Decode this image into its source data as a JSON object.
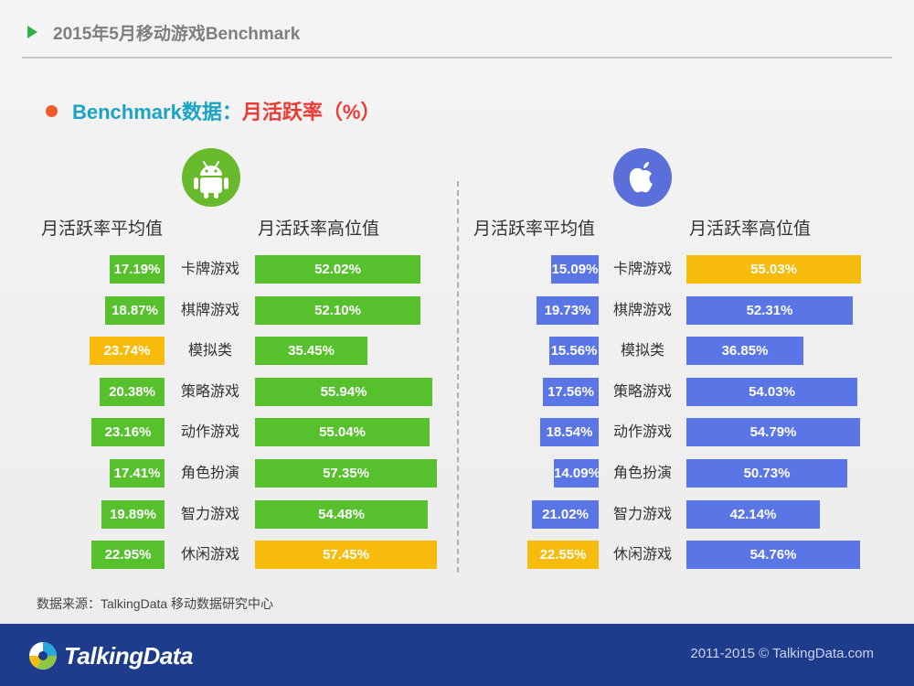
{
  "header": {
    "title": "2015年5月移动游戏Benchmark"
  },
  "subtitle": {
    "prefix": "Benchmark数据：",
    "highlight": "月活跃率（%）"
  },
  "colors": {
    "android_green": "#56c02d",
    "ios_blue": "#5a75e6",
    "highlight_yellow": "#f7bb0b",
    "android_icon": "#69b92d",
    "apple_icon": "#5a6fd9"
  },
  "icons": {
    "android": "android-robot-icon",
    "ios": "apple-icon",
    "logo": "talkingdata-logo-icon"
  },
  "chart_data": [
    {
      "type": "bar",
      "platform": "Android",
      "categories": [
        "卡牌游戏",
        "棋牌游戏",
        "模拟类",
        "策略游戏",
        "动作游戏",
        "角色扮演",
        "智力游戏",
        "休闲游戏"
      ],
      "series": [
        {
          "name": "月活跃率平均值",
          "values": [
            17.19,
            18.87,
            23.74,
            20.38,
            23.16,
            17.41,
            19.89,
            22.95
          ],
          "labels": [
            "17.19%",
            "18.87%",
            "23.74%",
            "20.38%",
            "23.16%",
            "17.41%",
            "19.89%",
            "22.95%"
          ],
          "highlight_index": 2
        },
        {
          "name": "月活跃率高位值",
          "values": [
            52.02,
            52.1,
            35.45,
            55.94,
            55.04,
            57.35,
            54.48,
            57.45
          ],
          "labels": [
            "52.02%",
            "52.10%",
            "35.45%",
            "55.94%",
            "55.04%",
            "57.35%",
            "54.48%",
            "57.45%"
          ],
          "highlight_index": 7
        }
      ]
    },
    {
      "type": "bar",
      "platform": "iOS",
      "categories": [
        "卡牌游戏",
        "棋牌游戏",
        "模拟类",
        "策略游戏",
        "动作游戏",
        "角色扮演",
        "智力游戏",
        "休闲游戏"
      ],
      "series": [
        {
          "name": "月活跃率平均值",
          "values": [
            15.09,
            19.73,
            15.56,
            17.56,
            18.54,
            14.09,
            21.02,
            22.55
          ],
          "labels": [
            "15.09%",
            "19.73%",
            "15.56%",
            "17.56%",
            "18.54%",
            "14.09%",
            "21.02%",
            "22.55%"
          ],
          "highlight_index": 7
        },
        {
          "name": "月活跃率高位值",
          "values": [
            55.03,
            52.31,
            36.85,
            54.03,
            54.79,
            50.73,
            42.14,
            54.76
          ],
          "labels": [
            "55.03%",
            "52.31%",
            "36.85%",
            "54.03%",
            "54.79%",
            "50.73%",
            "42.14%",
            "54.76%"
          ],
          "highlight_index": 0
        }
      ]
    }
  ],
  "source": "数据来源：TalkingData 移动数据研究中心",
  "footer": {
    "brand": "TalkingData",
    "copyright": "2011-2015 © TalkingData.com"
  }
}
